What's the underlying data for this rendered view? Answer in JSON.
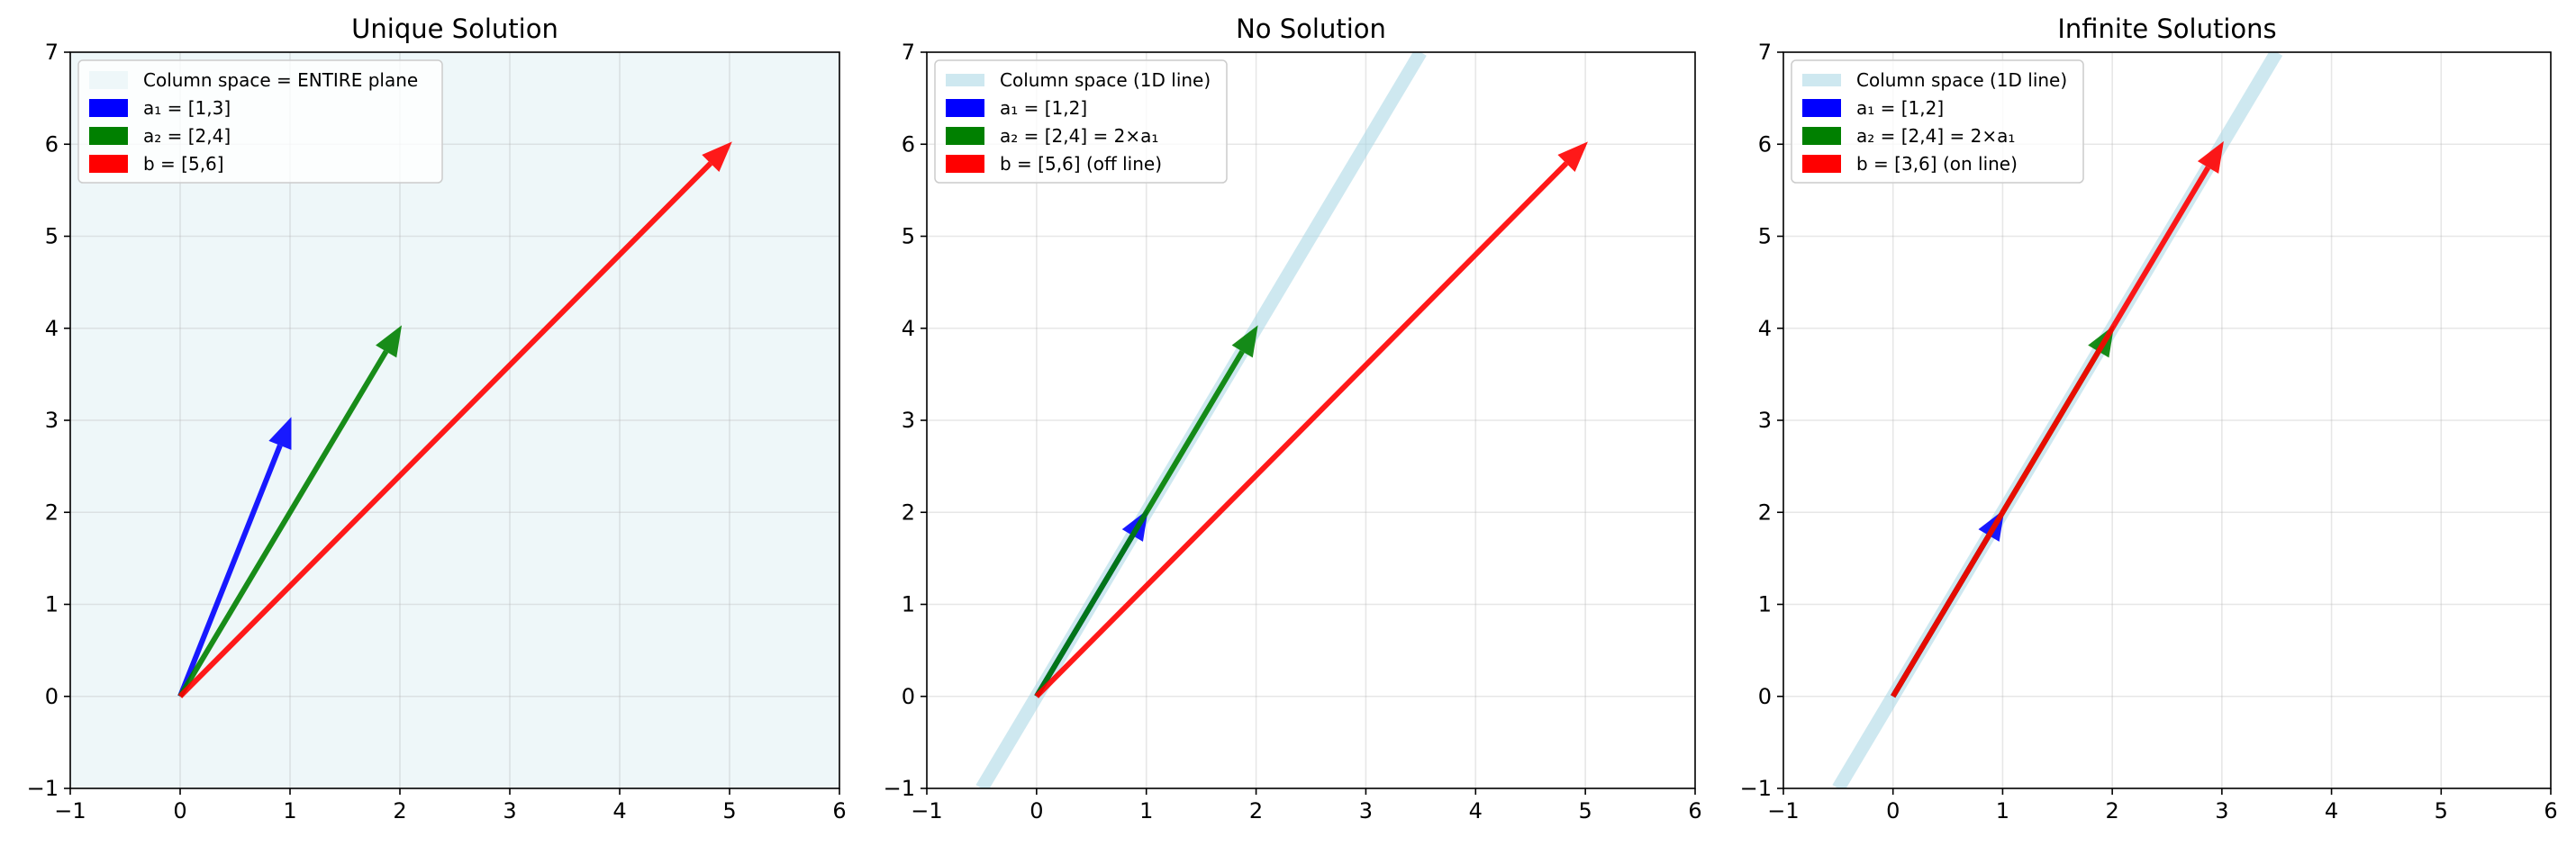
{
  "chart_data": [
    {
      "type": "vector-plot",
      "title": "Unique Solution",
      "xlim": [
        -1,
        6
      ],
      "ylim": [
        -1,
        7
      ],
      "xticks": [
        -1,
        0,
        1,
        2,
        3,
        4,
        5,
        6
      ],
      "yticks": [
        -1,
        0,
        1,
        2,
        3,
        4,
        5,
        6,
        7
      ],
      "xtick_labels": [
        "−1",
        "0",
        "1",
        "2",
        "3",
        "4",
        "5",
        "6"
      ],
      "ytick_labels": [
        "−1",
        "0",
        "1",
        "2",
        "3",
        "4",
        "5",
        "6",
        "7"
      ],
      "grid": true,
      "legend_position": "top-left",
      "column_space": {
        "kind": "plane",
        "color": "#eef7f9",
        "label": "Column space = ENTIRE plane"
      },
      "vectors": [
        {
          "name": "a₁ = [1,3]",
          "x": 1,
          "y": 3,
          "color": "#0000ff"
        },
        {
          "name": "a₂ = [2,4]",
          "x": 2,
          "y": 4,
          "color": "#008000"
        },
        {
          "name": "b = [5,6]",
          "x": 5,
          "y": 6,
          "color": "#ff0000"
        }
      ]
    },
    {
      "type": "vector-plot",
      "title": "No Solution",
      "xlim": [
        -1,
        6
      ],
      "ylim": [
        -1,
        7
      ],
      "xticks": [
        -1,
        0,
        1,
        2,
        3,
        4,
        5,
        6
      ],
      "yticks": [
        -1,
        0,
        1,
        2,
        3,
        4,
        5,
        6,
        7
      ],
      "xtick_labels": [
        "−1",
        "0",
        "1",
        "2",
        "3",
        "4",
        "5",
        "6"
      ],
      "ytick_labels": [
        "−1",
        "0",
        "1",
        "2",
        "3",
        "4",
        "5",
        "6",
        "7"
      ],
      "grid": true,
      "legend_position": "top-left",
      "column_space": {
        "kind": "line",
        "slope": 2,
        "color": "#add8e6",
        "label": "Column space (1D line)"
      },
      "vectors": [
        {
          "name": "a₁ = [1,2]",
          "x": 1,
          "y": 2,
          "color": "#0000ff"
        },
        {
          "name": "a₂ = [2,4] = 2×a₁",
          "x": 2,
          "y": 4,
          "color": "#008000"
        },
        {
          "name": "b = [5,6] (off line)",
          "x": 5,
          "y": 6,
          "color": "#ff0000"
        }
      ]
    },
    {
      "type": "vector-plot",
      "title": "Infinite Solutions",
      "xlim": [
        -1,
        6
      ],
      "ylim": [
        -1,
        7
      ],
      "xticks": [
        -1,
        0,
        1,
        2,
        3,
        4,
        5,
        6
      ],
      "yticks": [
        -1,
        0,
        1,
        2,
        3,
        4,
        5,
        6,
        7
      ],
      "xtick_labels": [
        "−1",
        "0",
        "1",
        "2",
        "3",
        "4",
        "5",
        "6"
      ],
      "ytick_labels": [
        "−1",
        "0",
        "1",
        "2",
        "3",
        "4",
        "5",
        "6",
        "7"
      ],
      "grid": true,
      "legend_position": "top-left",
      "column_space": {
        "kind": "line",
        "slope": 2,
        "color": "#add8e6",
        "label": "Column space (1D line)"
      },
      "vectors": [
        {
          "name": "a₁ = [1,2]",
          "x": 1,
          "y": 2,
          "color": "#0000ff"
        },
        {
          "name": "a₂ = [2,4] = 2×a₁",
          "x": 2,
          "y": 4,
          "color": "#008000"
        },
        {
          "name": "b = [3,6] (on line)",
          "x": 3,
          "y": 6,
          "color": "#ff0000"
        }
      ]
    }
  ]
}
